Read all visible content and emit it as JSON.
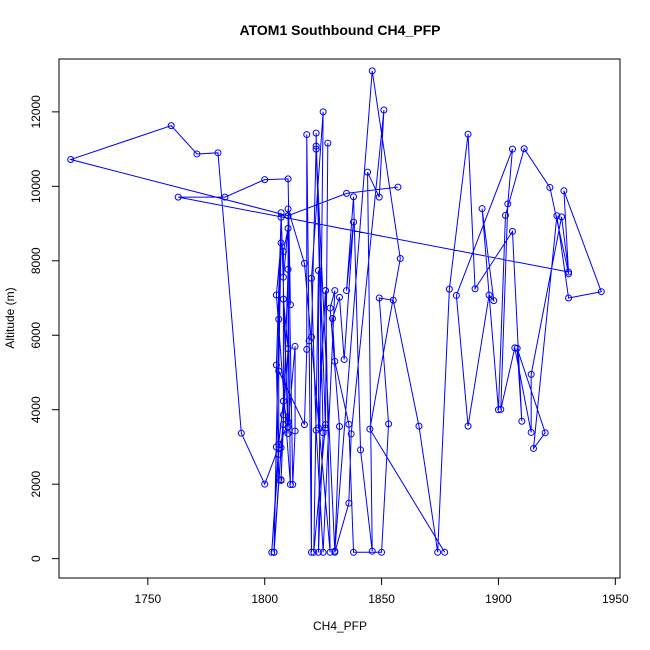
{
  "chart_data": {
    "type": "scatter",
    "title": "ATOM1 Southbound CH4_PFP",
    "xlabel": "CH4_PFP",
    "ylabel": "Altitude (m)",
    "xlim": [
      1712,
      1952
    ],
    "ylim": [
      -520,
      13420
    ],
    "x_ticks": [
      1750,
      1800,
      1850,
      1900,
      1950
    ],
    "y_ticks": [
      0,
      2000,
      4000,
      6000,
      8000,
      10000,
      12000
    ],
    "grid": false,
    "legend": "none",
    "colors": {
      "series": "#0000ff",
      "axes": "#000000",
      "background": "#ffffff"
    },
    "series": [
      {
        "x": [
          1877,
          1845,
          1858,
          1846,
          1830,
          1832,
          1828,
          1830,
          1825,
          1822,
          1820,
          1825,
          1823,
          1825,
          1822,
          1822,
          1826,
          1827,
          1826,
          1821,
          1823,
          1823,
          1826,
          1826,
          1828,
          1817,
          1810,
          1812,
          1813,
          1813,
          1810,
          1808,
          1806,
          1803,
          1806,
          1806,
          1804,
          1807,
          1805,
          1806,
          1804,
          1805,
          1807,
          1804,
          1810,
          1808,
          1810,
          1807,
          1808,
          1810,
          1808,
          1808,
          1807,
          1807,
          1808,
          1810,
          1811,
          1805,
          1807,
          1806,
          1817,
          1818,
          1818,
          1819,
          1820,
          1820,
          1822,
          1830,
          1836,
          1837,
          1851,
          1849,
          1844,
          1846,
          1841,
          1838,
          1835,
          1838,
          1834,
          1832,
          1829,
          1830,
          1836,
          1838,
          1850,
          1853,
          1849,
          1855,
          1866,
          1874,
          1879,
          1887,
          1890,
          1906,
          1910,
          1908,
          1920,
          1915,
          1925,
          1930,
          1944,
          1928,
          1930,
          1922,
          1911,
          1903,
          1900,
          1893,
          1898,
          1896,
          1887,
          1882,
          1906,
          1904,
          1901,
          1907,
          1914,
          1914,
          1927,
          1930,
          1763,
          1783,
          1800,
          1810,
          1811,
          1810,
          1810,
          1800,
          1790,
          1780,
          1771,
          1760,
          1717,
          1810,
          1835,
          1857
        ],
        "y": [
          170,
          3480,
          8060,
          13100,
          200,
          3550,
          6730,
          7200,
          170,
          3450,
          7530,
          12000,
          170,
          3380,
          11430,
          11000,
          3510,
          11160,
          3600,
          170,
          7740,
          3510,
          7200,
          7200,
          170,
          7930,
          9390,
          1990,
          3430,
          5700,
          3540,
          4230,
          3070,
          170,
          2800,
          6430,
          170,
          9170,
          5200,
          2120,
          170,
          3000,
          2980,
          170,
          5640,
          6970,
          3360,
          9290,
          7560,
          8870,
          8250,
          3600,
          2120,
          2100,
          3860,
          7770,
          1990,
          7080,
          8480,
          5040,
          3600,
          5620,
          11390,
          5850,
          170,
          5950,
          11080,
          170,
          1490,
          3350,
          12050,
          9710,
          10380,
          200,
          2920,
          9720,
          7200,
          9040,
          5350,
          7020,
          6450,
          5300,
          3610,
          170,
          170,
          3620,
          7000,
          6940,
          3560,
          170,
          7240,
          11400,
          7250,
          8790,
          3690,
          5650,
          3380,
          2960,
          9210,
          7000,
          7170,
          9880,
          7650,
          9970,
          11010,
          9220,
          4000,
          9400,
          6930,
          7080,
          3560,
          7070,
          11000,
          9530,
          4010,
          5660,
          3390,
          4950,
          9180,
          7700,
          9710,
          9710,
          10180,
          10200,
          6820,
          9210,
          3670,
          2000,
          3370,
          10900,
          10870,
          11630,
          10720,
          9210,
          9810,
          9980
        ]
      }
    ]
  }
}
